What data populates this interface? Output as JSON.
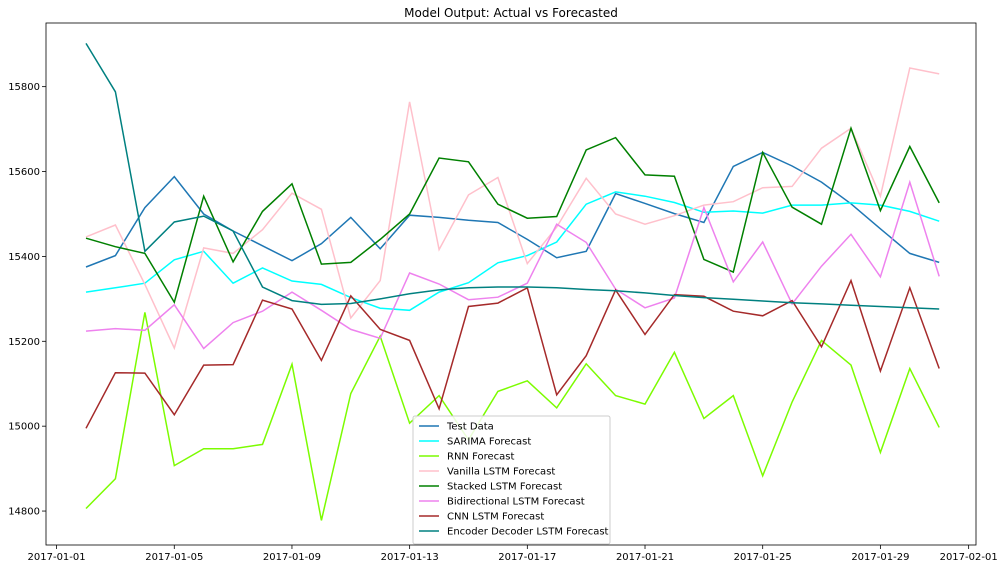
{
  "chart_data": {
    "type": "line",
    "title": "Model Output: Actual vs Forecasted",
    "xlabel": "",
    "ylabel": "",
    "x_axis_type": "date",
    "xlim": [
      "2017-01-01",
      "2017-02-01"
    ],
    "ylim": [
      14720,
      15950
    ],
    "xticks": [
      "2017-01-01",
      "2017-01-05",
      "2017-01-09",
      "2017-01-13",
      "2017-01-17",
      "2017-01-21",
      "2017-01-25",
      "2017-01-29",
      "2017-02-01"
    ],
    "yticks": [
      14800,
      15000,
      15200,
      15400,
      15600,
      15800
    ],
    "grid": false,
    "legend_position": "lower-center",
    "x": [
      "2017-01-02",
      "2017-01-03",
      "2017-01-04",
      "2017-01-05",
      "2017-01-06",
      "2017-01-07",
      "2017-01-08",
      "2017-01-09",
      "2017-01-10",
      "2017-01-11",
      "2017-01-12",
      "2017-01-13",
      "2017-01-14",
      "2017-01-15",
      "2017-01-16",
      "2017-01-17",
      "2017-01-18",
      "2017-01-19",
      "2017-01-20",
      "2017-01-21",
      "2017-01-22",
      "2017-01-23",
      "2017-01-24",
      "2017-01-25",
      "2017-01-26",
      "2017-01-27",
      "2017-01-28",
      "2017-01-29",
      "2017-01-30",
      "2017-01-31"
    ],
    "series": [
      {
        "name": "Test Data",
        "color": "#1f77b4",
        "values": [
          15375,
          15402,
          15515,
          15588,
          15500,
          15460,
          15425,
          15390,
          15430,
          15492,
          15418,
          15497,
          15492,
          15485,
          15480,
          15440,
          15397,
          15412,
          15548,
          15525,
          15501,
          15480,
          15612,
          15645,
          15613,
          15575,
          15524,
          15465,
          15407,
          15386
        ]
      },
      {
        "name": "SARIMA Forecast",
        "color": "#00ffff",
        "values": [
          15316,
          15326,
          15337,
          15392,
          15412,
          15337,
          15373,
          15342,
          15334,
          15303,
          15278,
          15273,
          15316,
          15338,
          15385,
          15402,
          15434,
          15523,
          15552,
          15542,
          15527,
          15504,
          15507,
          15502,
          15521,
          15521,
          15526,
          15521,
          15506,
          15483
        ]
      },
      {
        "name": "RNN Forecast",
        "color": "#7cfc00",
        "values": [
          14806,
          14876,
          15268,
          14907,
          14947,
          14947,
          14957,
          15146,
          14778,
          15077,
          15212,
          15007,
          15072,
          14968,
          15082,
          15107,
          15043,
          15147,
          15072,
          15052,
          15174,
          15018,
          15072,
          14883,
          15057,
          15202,
          15144,
          14938,
          15136,
          14997
        ]
      },
      {
        "name": "Vanilla LSTM Forecast",
        "color": "#ffc0cb",
        "values": [
          15446,
          15474,
          15334,
          15184,
          15420,
          15407,
          15463,
          15549,
          15511,
          15255,
          15343,
          15764,
          15416,
          15545,
          15586,
          15383,
          15469,
          15584,
          15500,
          15476,
          15496,
          15521,
          15529,
          15562,
          15565,
          15655,
          15702,
          15542,
          15844,
          15830
        ]
      },
      {
        "name": "Stacked LSTM Forecast",
        "color": "#008000",
        "values": [
          15443,
          15423,
          15407,
          15292,
          15542,
          15387,
          15506,
          15571,
          15382,
          15386,
          15440,
          15500,
          15632,
          15623,
          15523,
          15490,
          15494,
          15651,
          15680,
          15592,
          15589,
          15393,
          15363,
          15645,
          15516,
          15476,
          15702,
          15508,
          15659,
          15526
        ]
      },
      {
        "name": "Bidirectional LSTM Forecast",
        "color": "#ee82ee",
        "values": [
          15224,
          15230,
          15226,
          15286,
          15183,
          15244,
          15271,
          15316,
          15273,
          15228,
          15207,
          15361,
          15335,
          15298,
          15304,
          15337,
          15476,
          15433,
          15323,
          15279,
          15302,
          15515,
          15340,
          15434,
          15288,
          15377,
          15452,
          15352,
          15575,
          15353
        ]
      },
      {
        "name": "CNN LSTM Forecast",
        "color": "#a52a2a",
        "values": [
          14995,
          15126,
          15125,
          15027,
          15144,
          15145,
          15297,
          15276,
          15155,
          15307,
          15228,
          15202,
          15041,
          15282,
          15290,
          15326,
          15074,
          15166,
          15321,
          15216,
          15310,
          15306,
          15271,
          15260,
          15296,
          15187,
          15343,
          15130,
          15326,
          15136
        ]
      },
      {
        "name": "Encoder Decoder LSTM Forecast",
        "color": "#008080",
        "values": [
          15902,
          15788,
          15412,
          15481,
          15495,
          15460,
          15328,
          15296,
          15287,
          15289,
          15300,
          15312,
          15321,
          15326,
          15328,
          15328,
          15326,
          15322,
          15319,
          15314,
          15308,
          15303,
          15299,
          15295,
          15291,
          15288,
          15285,
          15282,
          15279,
          15276
        ]
      }
    ]
  }
}
